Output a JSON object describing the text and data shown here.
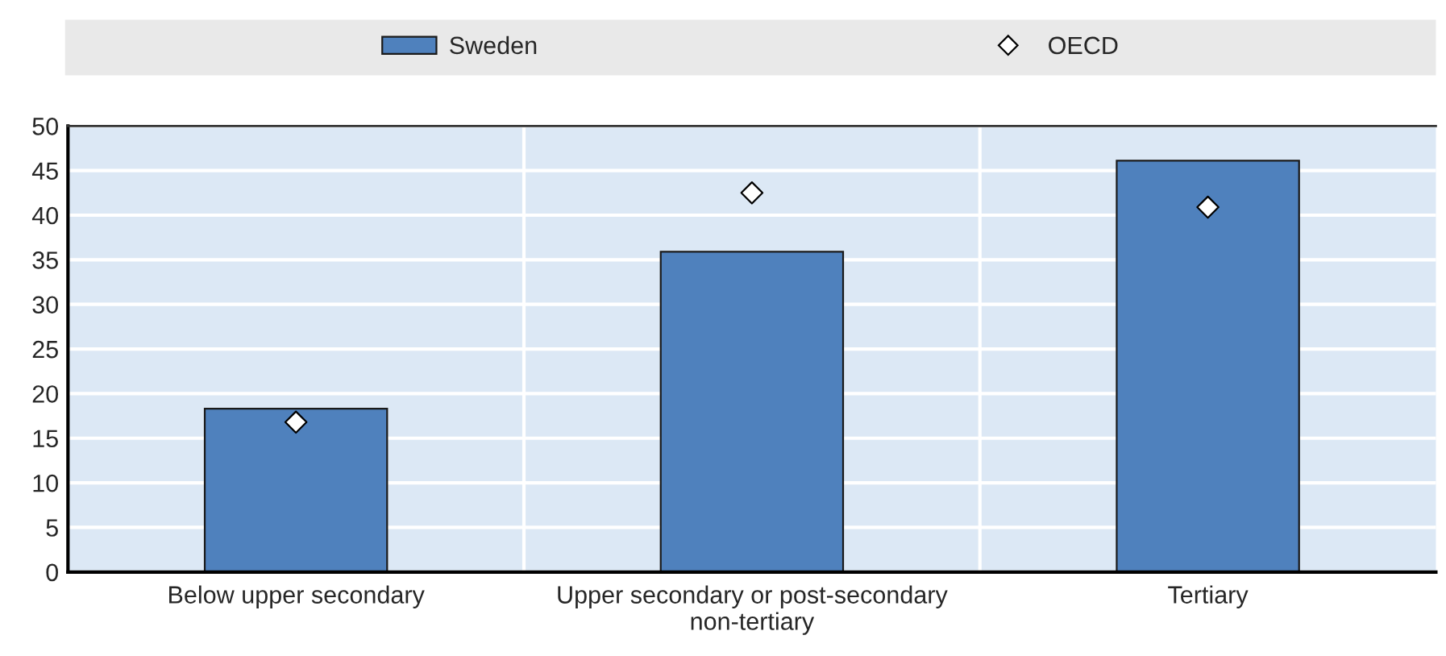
{
  "chart_data": {
    "type": "bar",
    "categories": [
      "Below upper secondary",
      "Upper secondary or post-secondary non-tertiary",
      "Tertiary"
    ],
    "series": [
      {
        "name": "Sweden",
        "color": "#4f81bd",
        "values": [
          18.3,
          35.9,
          46.1
        ]
      },
      {
        "name": "OECD",
        "type": "scatter",
        "marker": "diamond",
        "color": "#ffffff",
        "x": [
          "Below upper secondary",
          "Upper secondary or post-secondary non-tertiary",
          "Tertiary"
        ],
        "values": [
          16.8,
          42.5,
          40.9
        ]
      }
    ],
    "ylim": [
      0,
      50
    ],
    "yticks": [
      0,
      5,
      10,
      15,
      20,
      25,
      30,
      35,
      40,
      45,
      50
    ],
    "grid": true,
    "legend": "top"
  }
}
